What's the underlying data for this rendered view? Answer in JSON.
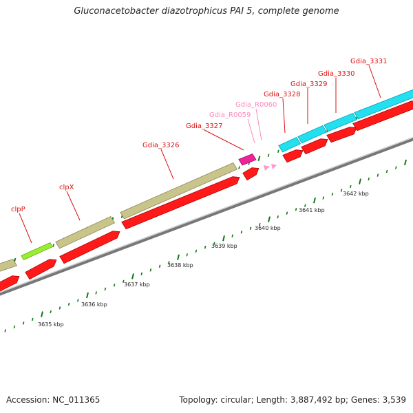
{
  "header": {
    "title": "Gluconacetobacter diazotrophicus PAI 5, complete genome"
  },
  "footer": {
    "accession": "Accession: NC_011365",
    "summary": "Topology: circular; Length: 3,887,492 bp; Genes: 3,539"
  },
  "colors": {
    "cds": "#ff1a1a",
    "clp": "#c8c48a",
    "clpP_feature": "#99ee33",
    "gdia_3328_to_3331": "#22e0f0",
    "rna": "#ee2299",
    "rna_light": "#ff99cc",
    "backbone": "#999999",
    "tick": "#117711",
    "label_red": "#dd1111",
    "label_pink": "#ff88bb"
  },
  "scale": {
    "unit": "kbp",
    "ticks": [
      "3635 kbp",
      "3636 kbp",
      "3637 kbp",
      "3638 kbp",
      "3639 kbp",
      "3640 kbp",
      "3641 kbp",
      "3642 kbp"
    ]
  },
  "genes": [
    {
      "name": "clpP",
      "label_color": "label_red"
    },
    {
      "name": "clpX",
      "label_color": "label_red"
    },
    {
      "name": "Gdia_3326",
      "label_color": "label_red"
    },
    {
      "name": "Gdia_3327",
      "label_color": "label_red"
    },
    {
      "name": "Gdia_R0059",
      "label_color": "label_pink"
    },
    {
      "name": "Gdia_R0060",
      "label_color": "label_pink"
    },
    {
      "name": "Gdia_3328",
      "label_color": "label_red"
    },
    {
      "name": "Gdia_3329",
      "label_color": "label_red"
    },
    {
      "name": "Gdia_3330",
      "label_color": "label_red"
    },
    {
      "name": "Gdia_3331",
      "label_color": "label_red"
    }
  ]
}
